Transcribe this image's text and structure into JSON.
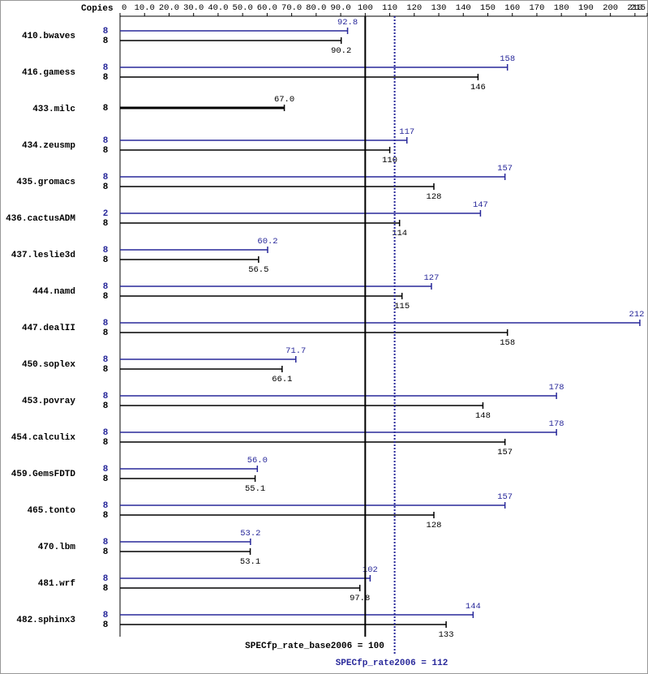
{
  "chart_data": {
    "type": "bar",
    "orientation": "horizontal",
    "copies_header": "Copies",
    "categories": [
      "410.bwaves",
      "416.gamess",
      "433.milc",
      "434.zeusmp",
      "435.gromacs",
      "436.cactusADM",
      "437.leslie3d",
      "444.namd",
      "447.dealII",
      "450.soplex",
      "453.povray",
      "454.calculix",
      "459.GemsFDTD",
      "465.tonto",
      "470.lbm",
      "481.wrf",
      "482.sphinx3"
    ],
    "series": [
      {
        "color": "#28289a",
        "copies": [
          8,
          8,
          null,
          8,
          8,
          2,
          8,
          8,
          8,
          8,
          8,
          8,
          8,
          8,
          8,
          8,
          8
        ],
        "values": [
          92.8,
          158,
          null,
          117,
          157,
          147,
          60.2,
          127,
          212,
          71.7,
          178,
          178,
          56.0,
          157,
          53.2,
          102,
          144
        ],
        "value_labels": [
          "92.8",
          "158",
          null,
          "117",
          "157",
          "147",
          "60.2",
          "127",
          "212",
          "71.7",
          "178",
          "178",
          "56.0",
          "157",
          "53.2",
          "102",
          "144"
        ]
      },
      {
        "color": "#000000",
        "copies": [
          8,
          8,
          8,
          8,
          8,
          8,
          8,
          8,
          8,
          8,
          8,
          8,
          8,
          8,
          8,
          8,
          8
        ],
        "values": [
          90.2,
          146,
          67.0,
          110,
          128,
          114,
          56.5,
          115,
          158,
          66.1,
          148,
          157,
          55.1,
          128,
          53.1,
          97.8,
          133
        ],
        "value_labels": [
          "90.2",
          "146",
          "67.0",
          "110",
          "128",
          "114",
          "56.5",
          "115",
          "158",
          "66.1",
          "148",
          "157",
          "55.1",
          "128",
          "53.1",
          "97.8",
          "133"
        ]
      }
    ],
    "xlim": [
      0,
      215
    ],
    "xticks": [
      0,
      {
        "value": 10,
        "label": "10.0"
      },
      {
        "value": 20,
        "label": "20.0"
      },
      {
        "value": 30,
        "label": "30.0"
      },
      {
        "value": 40,
        "label": "40.0"
      },
      {
        "value": 50,
        "label": "50.0"
      },
      {
        "value": 60,
        "label": "60.0"
      },
      {
        "value": 70,
        "label": "70.0"
      },
      {
        "value": 80,
        "label": "80.0"
      },
      {
        "value": 90,
        "label": "90.0"
      },
      100,
      110,
      120,
      130,
      140,
      150,
      160,
      170,
      180,
      190,
      200,
      210,
      215
    ],
    "reference_lines": [
      {
        "label": "SPECfp_rate_base2006 = 100",
        "value": 100,
        "color": "#000000",
        "style": "solid"
      },
      {
        "label": "SPECfp_rate2006 = 112",
        "value": 112,
        "color": "#28289a",
        "style": "dotted"
      }
    ]
  }
}
